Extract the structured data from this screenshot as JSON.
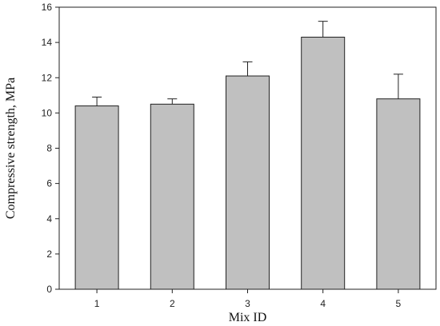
{
  "chart_data": {
    "type": "bar",
    "categories": [
      "1",
      "2",
      "3",
      "4",
      "5"
    ],
    "values": [
      10.4,
      10.5,
      12.1,
      14.3,
      10.8
    ],
    "errors": [
      0.5,
      0.3,
      0.8,
      0.9,
      1.4
    ],
    "title": "",
    "xlabel": "Mix ID",
    "ylabel": "Compressive strength, MPa",
    "ylim": [
      0,
      16
    ],
    "yticks": [
      0,
      2,
      4,
      6,
      8,
      10,
      12,
      14,
      16
    ],
    "grid": false,
    "legend": "none",
    "bar_color": "#c0c0c0",
    "edge_color": "#222222"
  }
}
